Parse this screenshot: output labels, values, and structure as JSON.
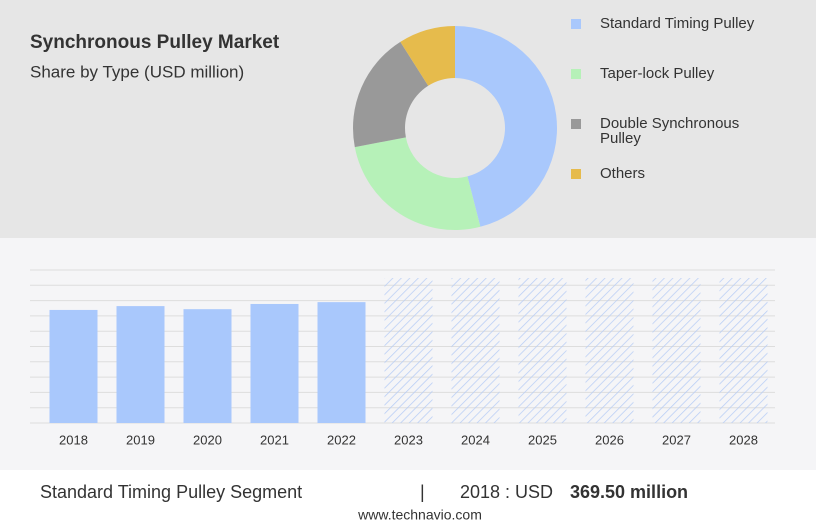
{
  "chart_data": [
    {
      "type": "pie",
      "donut": true,
      "title": "Synchronous Pulley Market",
      "subtitle": "Share by Type (USD million)",
      "categories": [
        "Standard Timing Pulley",
        "Taper-lock Pulley",
        "Double Synchronous Pulley",
        "Others"
      ],
      "values": [
        46,
        26,
        19,
        9
      ],
      "colors": [
        "#a9c8fc",
        "#b6f1b8",
        "#999999",
        "#e6bb4c"
      ]
    },
    {
      "type": "bar",
      "categories": [
        "2018",
        "2019",
        "2020",
        "2021",
        "2022",
        "2023",
        "2024",
        "2025",
        "2026",
        "2027",
        "2028"
      ],
      "values": [
        369.5,
        382,
        372,
        389,
        395,
        null,
        null,
        null,
        null,
        null,
        null
      ],
      "color": "#a9c8fc",
      "ylim": [
        0,
        500
      ],
      "yticks": [
        0,
        50,
        100,
        150,
        200,
        250,
        300,
        350,
        400,
        450,
        500
      ],
      "grid": true
    }
  ],
  "footer": {
    "segment": "Standard Timing Pulley Segment",
    "separator": "|",
    "year_label": "2018 : USD",
    "value_label": "369.50 million",
    "website": "www.technavio.com"
  }
}
